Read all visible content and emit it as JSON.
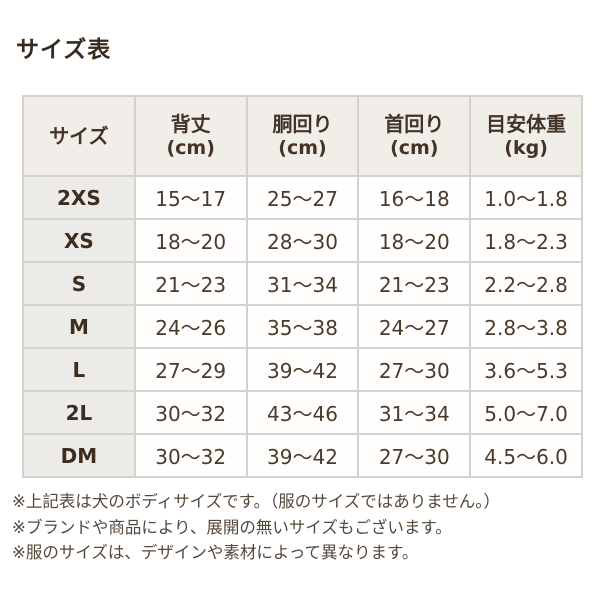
{
  "title": "サイズ表",
  "table": {
    "headers": [
      {
        "label": "サイズ",
        "unit": ""
      },
      {
        "label": "背丈",
        "unit": "(cm)"
      },
      {
        "label": "胴回り",
        "unit": "(cm)"
      },
      {
        "label": "首回り",
        "unit": "(cm)"
      },
      {
        "label": "目安体重",
        "unit": "(kg)"
      }
    ],
    "rows": [
      {
        "size": "2XS",
        "back_length": "15〜17",
        "girth": "25〜27",
        "neck": "16〜18",
        "weight": "1.0〜1.8"
      },
      {
        "size": "XS",
        "back_length": "18〜20",
        "girth": "28〜30",
        "neck": "18〜20",
        "weight": "1.8〜2.3"
      },
      {
        "size": "S",
        "back_length": "21〜23",
        "girth": "31〜34",
        "neck": "21〜23",
        "weight": "2.2〜2.8"
      },
      {
        "size": "M",
        "back_length": "24〜26",
        "girth": "35〜38",
        "neck": "24〜27",
        "weight": "2.8〜3.8"
      },
      {
        "size": "L",
        "back_length": "27〜29",
        "girth": "39〜42",
        "neck": "27〜30",
        "weight": "3.6〜5.3"
      },
      {
        "size": "2L",
        "back_length": "30〜32",
        "girth": "43〜46",
        "neck": "31〜34",
        "weight": "5.0〜7.0"
      },
      {
        "size": "DM",
        "back_length": "30〜32",
        "girth": "39〜42",
        "neck": "27〜30",
        "weight": "4.5〜6.0"
      }
    ]
  },
  "notes": [
    "※上記表は犬のボディサイズです。（服のサイズではありません。）",
    "※ブランドや商品により、展開の無いサイズもございます。",
    "※服のサイズは、デザインや素材によって異なります。"
  ],
  "colors": {
    "page_background": "#ffffff",
    "header_cell_background": "#f1eeea",
    "size_column_background": "#edebe8",
    "data_cell_background": "#fffefd",
    "table_border": "#d4d1ce",
    "title_text": "#382b1e",
    "cell_text": "#493a2c",
    "note_text": "#55483b"
  }
}
